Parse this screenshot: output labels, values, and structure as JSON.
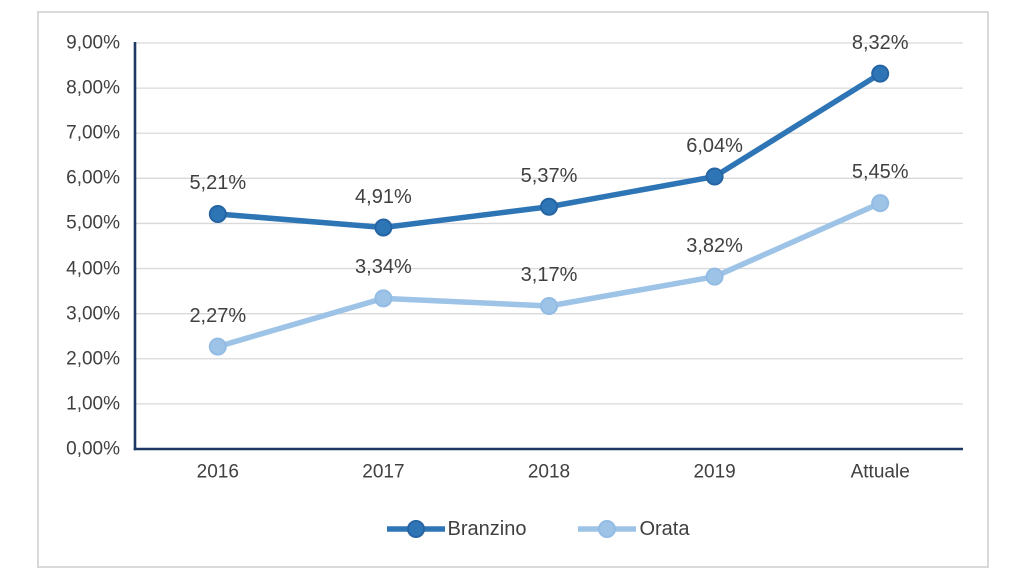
{
  "chart_data": {
    "type": "line",
    "title": "",
    "categories": [
      "2016",
      "2017",
      "2018",
      "2019",
      "Attuale"
    ],
    "series": [
      {
        "name": "Branzino",
        "color": "#2E75B6",
        "marker_border": "#2565A3",
        "values": [
          5.21,
          4.91,
          5.37,
          6.04,
          8.32
        ],
        "labels": [
          "5,21%",
          "4,91%",
          "5,37%",
          "6,04%",
          "8,32%"
        ]
      },
      {
        "name": "Orata",
        "color": "#9DC3E6",
        "marker_border": "#92BCE3",
        "values": [
          2.27,
          3.34,
          3.17,
          3.82,
          5.45
        ],
        "labels": [
          "2,27%",
          "3,34%",
          "3,17%",
          "3,82%",
          "5,45%"
        ]
      }
    ],
    "y_axis": {
      "min": 0,
      "max": 9,
      "step": 1,
      "tick_labels": [
        "0,00%",
        "1,00%",
        "2,00%",
        "3,00%",
        "4,00%",
        "5,00%",
        "6,00%",
        "7,00%",
        "8,00%",
        "9,00%"
      ]
    },
    "grid": true,
    "legend_position": "bottom",
    "colors": {
      "axis": "#1F3864",
      "gridline": "#D9D9D9",
      "text": "#404040",
      "frame_border": "#D9D9D9"
    }
  }
}
